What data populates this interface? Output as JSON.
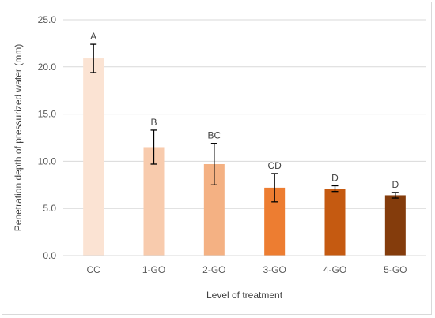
{
  "chart_data": {
    "type": "bar",
    "categories": [
      "CC",
      "1-GO",
      "2-GO",
      "3-GO",
      "4-GO",
      "5-GO"
    ],
    "values": [
      20.9,
      11.5,
      9.7,
      7.2,
      7.1,
      6.4
    ],
    "errors": [
      1.5,
      1.8,
      2.2,
      1.5,
      0.3,
      0.3
    ],
    "labels": [
      "A",
      "B",
      "BC",
      "CD",
      "D",
      "D"
    ],
    "bar_colors": [
      "#fbe3d3",
      "#f8cbad",
      "#f4b183",
      "#ed7d31",
      "#c55a11",
      "#843c0c"
    ],
    "xlabel": "Level of treatment",
    "ylabel": "Penetration depth of pressurized water (mm)",
    "ylim": [
      0,
      25
    ],
    "yticks": [
      "0.0",
      "5.0",
      "10.0",
      "15.0",
      "20.0",
      "25.0"
    ],
    "grid": true,
    "grid_color": "#d9d9d9",
    "legend": "none"
  }
}
